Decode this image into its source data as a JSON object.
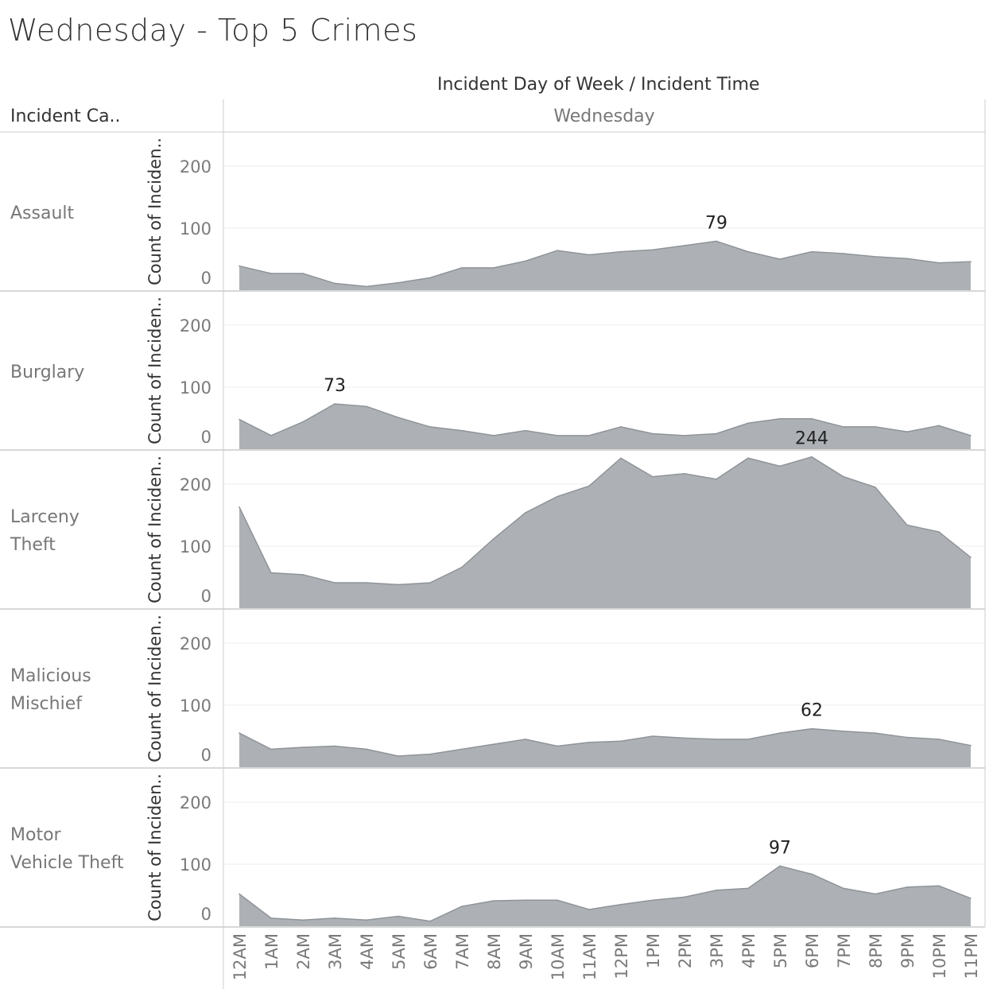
{
  "title": "Wednesday - Top 5 Crimes",
  "header": {
    "path_label": "Incident Day of Week  /  Incident Time",
    "row_field": "Incident Ca..",
    "column_value": "Wednesday"
  },
  "colors": {
    "area_fill": "#adb1b5",
    "area_line": "#8f9499",
    "gridline": "#ececec",
    "divider": "#cccccc"
  },
  "chart_data": {
    "type": "area",
    "x_labels": [
      "12AM",
      "1AM",
      "2AM",
      "3AM",
      "4AM",
      "5AM",
      "6AM",
      "7AM",
      "8AM",
      "9AM",
      "10AM",
      "11AM",
      "12PM",
      "1PM",
      "2PM",
      "3PM",
      "4PM",
      "5PM",
      "6PM",
      "7PM",
      "8PM",
      "9PM",
      "10PM",
      "11PM"
    ],
    "y_axis_label": "Count of Inciden..",
    "y_ticks": [
      0,
      100,
      200
    ],
    "ylim": [
      0,
      255
    ],
    "grid": true,
    "panels": [
      {
        "label_lines": [
          "Assault"
        ],
        "values": [
          39,
          27,
          27,
          11,
          6,
          12,
          20,
          36,
          36,
          47,
          64,
          57,
          62,
          65,
          72,
          79,
          62,
          50,
          62,
          59,
          54,
          51,
          44,
          46
        ],
        "annotation": {
          "index": 15,
          "text": "79"
        }
      },
      {
        "label_lines": [
          "Burglary"
        ],
        "values": [
          48,
          22,
          44,
          73,
          69,
          51,
          36,
          30,
          22,
          30,
          22,
          22,
          36,
          25,
          22,
          25,
          42,
          49,
          49,
          36,
          36,
          28,
          38,
          22
        ],
        "annotation": {
          "index": 3,
          "text": "73"
        }
      },
      {
        "label_lines": [
          "Larceny",
          "Theft"
        ],
        "values": [
          163,
          57,
          54,
          41,
          41,
          38,
          41,
          66,
          112,
          154,
          180,
          197,
          242,
          212,
          217,
          208,
          242,
          229,
          244,
          212,
          195,
          134,
          123,
          82
        ],
        "annotation": {
          "index": 18,
          "text": "244"
        }
      },
      {
        "label_lines": [
          "Malicious",
          "Mischief"
        ],
        "values": [
          55,
          29,
          32,
          34,
          29,
          18,
          21,
          29,
          37,
          45,
          34,
          40,
          42,
          50,
          47,
          45,
          45,
          55,
          62,
          58,
          55,
          48,
          45,
          35
        ],
        "annotation": {
          "index": 18,
          "text": "62"
        }
      },
      {
        "label_lines": [
          "Motor",
          "Vehicle Theft"
        ],
        "values": [
          52,
          13,
          10,
          13,
          10,
          16,
          8,
          32,
          41,
          42,
          42,
          27,
          35,
          42,
          47,
          58,
          61,
          97,
          84,
          61,
          52,
          63,
          65,
          45
        ],
        "annotation": {
          "index": 17,
          "text": "97"
        }
      }
    ]
  }
}
